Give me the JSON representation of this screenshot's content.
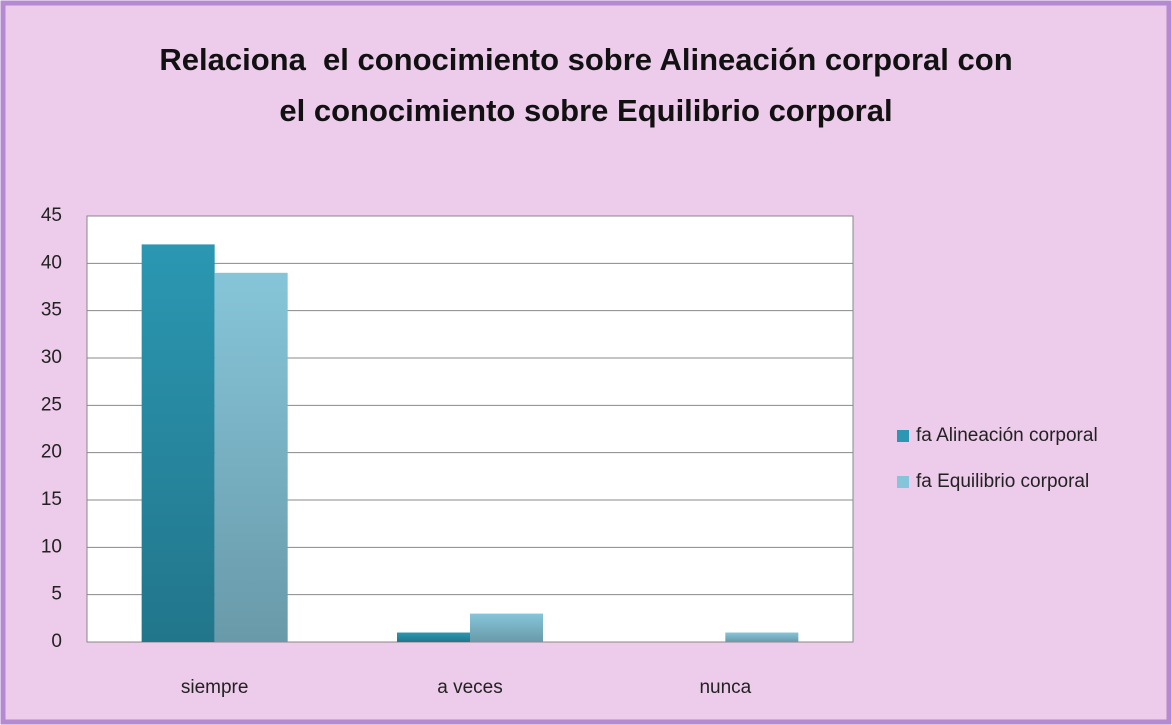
{
  "chart_data": {
    "type": "bar",
    "title": "Relaciona  el conocimiento sobre Alineación corporal con el conocimiento sobre Equilibrio corporal",
    "categories": [
      "siempre",
      "a veces",
      "nunca"
    ],
    "series": [
      {
        "name": "fa Alineación corporal",
        "color": "#2b97b2",
        "values": [
          42,
          1,
          0
        ]
      },
      {
        "name": "fa Equilibrio corporal",
        "color": "#86c5d9",
        "values": [
          39,
          3,
          1
        ]
      }
    ],
    "ylim": [
      0,
      45
    ],
    "yticks": [
      0,
      5,
      10,
      15,
      20,
      25,
      30,
      35,
      40,
      45
    ],
    "grid": true,
    "legend": "right"
  }
}
